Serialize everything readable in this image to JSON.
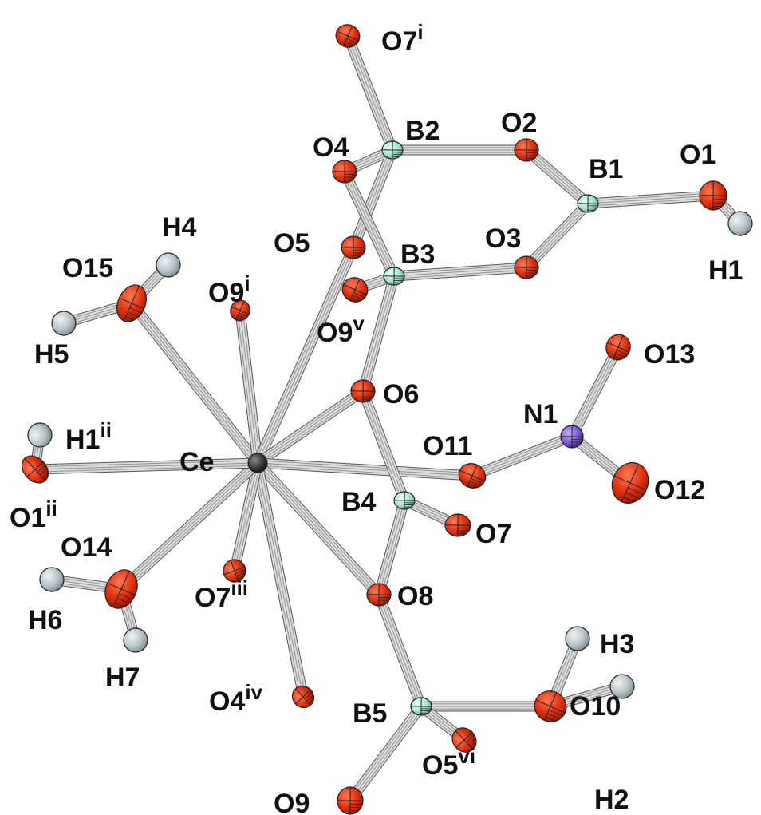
{
  "structure": {
    "atoms": [
      {
        "id": "Ce",
        "element": "Ce",
        "label": "Ce",
        "sup": ""
      },
      {
        "id": "B1",
        "element": "B",
        "label": "B1",
        "sup": ""
      },
      {
        "id": "B2",
        "element": "B",
        "label": "B2",
        "sup": ""
      },
      {
        "id": "B3",
        "element": "B",
        "label": "B3",
        "sup": ""
      },
      {
        "id": "B4",
        "element": "B",
        "label": "B4",
        "sup": ""
      },
      {
        "id": "B5",
        "element": "B",
        "label": "B5",
        "sup": ""
      },
      {
        "id": "N1",
        "element": "N",
        "label": "N1",
        "sup": ""
      },
      {
        "id": "O1",
        "element": "O",
        "label": "O1",
        "sup": ""
      },
      {
        "id": "O2",
        "element": "O",
        "label": "O2",
        "sup": ""
      },
      {
        "id": "O3",
        "element": "O",
        "label": "O3",
        "sup": ""
      },
      {
        "id": "O4",
        "element": "O",
        "label": "O4",
        "sup": ""
      },
      {
        "id": "O5",
        "element": "O",
        "label": "O5",
        "sup": ""
      },
      {
        "id": "O6",
        "element": "O",
        "label": "O6",
        "sup": ""
      },
      {
        "id": "O7",
        "element": "O",
        "label": "O7",
        "sup": ""
      },
      {
        "id": "O8",
        "element": "O",
        "label": "O8",
        "sup": ""
      },
      {
        "id": "O9",
        "element": "O",
        "label": "O9",
        "sup": ""
      },
      {
        "id": "O10",
        "element": "O",
        "label": "O10",
        "sup": ""
      },
      {
        "id": "O11",
        "element": "O",
        "label": "O11",
        "sup": ""
      },
      {
        "id": "O12",
        "element": "O",
        "label": "O12",
        "sup": ""
      },
      {
        "id": "O13",
        "element": "O",
        "label": "O13",
        "sup": ""
      },
      {
        "id": "O14",
        "element": "O",
        "label": "O14",
        "sup": ""
      },
      {
        "id": "O15",
        "element": "O",
        "label": "O15",
        "sup": ""
      },
      {
        "id": "O7i",
        "element": "O",
        "label": "O7",
        "sup": "i"
      },
      {
        "id": "O9i",
        "element": "O",
        "label": "O9",
        "sup": "i"
      },
      {
        "id": "O9v",
        "element": "O",
        "label": "O9",
        "sup": "v"
      },
      {
        "id": "O1ii",
        "element": "O",
        "label": "O1",
        "sup": "ii"
      },
      {
        "id": "O7iii",
        "element": "O",
        "label": "O7",
        "sup": "iii"
      },
      {
        "id": "O4iv",
        "element": "O",
        "label": "O4",
        "sup": "iv"
      },
      {
        "id": "O5vi",
        "element": "O",
        "label": "O5",
        "sup": "vi"
      },
      {
        "id": "H1",
        "element": "H",
        "label": "H1",
        "sup": ""
      },
      {
        "id": "H2",
        "element": "H",
        "label": "H2",
        "sup": ""
      },
      {
        "id": "H3",
        "element": "H",
        "label": "H3",
        "sup": ""
      },
      {
        "id": "H4",
        "element": "H",
        "label": "H4",
        "sup": ""
      },
      {
        "id": "H5",
        "element": "H",
        "label": "H5",
        "sup": ""
      },
      {
        "id": "H6",
        "element": "H",
        "label": "H6",
        "sup": ""
      },
      {
        "id": "H7",
        "element": "H",
        "label": "H7",
        "sup": ""
      },
      {
        "id": "H1ii",
        "element": "H",
        "label": "H1",
        "sup": "ii"
      }
    ],
    "bonds": [
      [
        "Ce",
        "O15"
      ],
      [
        "Ce",
        "O9i"
      ],
      [
        "Ce",
        "O5"
      ],
      [
        "Ce",
        "O6"
      ],
      [
        "Ce",
        "O11"
      ],
      [
        "Ce",
        "O8"
      ],
      [
        "Ce",
        "O4iv"
      ],
      [
        "Ce",
        "O7iii"
      ],
      [
        "Ce",
        "O14"
      ],
      [
        "Ce",
        "O1ii"
      ],
      [
        "O15",
        "H4"
      ],
      [
        "O15",
        "H5"
      ],
      [
        "O14",
        "H6"
      ],
      [
        "O14",
        "H7"
      ],
      [
        "O1ii",
        "H1ii"
      ],
      [
        "O7i",
        "B2"
      ],
      [
        "B2",
        "O4"
      ],
      [
        "B2",
        "O5"
      ],
      [
        "B2",
        "O2"
      ],
      [
        "O2",
        "B1"
      ],
      [
        "B1",
        "O1"
      ],
      [
        "O1",
        "H1"
      ],
      [
        "B1",
        "O3"
      ],
      [
        "O3",
        "B3"
      ],
      [
        "B3",
        "O9v"
      ],
      [
        "B3",
        "O4"
      ],
      [
        "B3",
        "O6"
      ],
      [
        "O6",
        "B4"
      ],
      [
        "B4",
        "O7"
      ],
      [
        "B4",
        "O8"
      ],
      [
        "O8",
        "B5"
      ],
      [
        "B5",
        "O10"
      ],
      [
        "O10",
        "H3"
      ],
      [
        "O10",
        "H2"
      ],
      [
        "B5",
        "O5vi"
      ],
      [
        "B5",
        "O9"
      ],
      [
        "O11",
        "N1"
      ],
      [
        "N1",
        "O12"
      ],
      [
        "N1",
        "O13"
      ]
    ]
  },
  "colors": {
    "Ce": "#3a3a3a",
    "B": "#a8e6cf",
    "N": "#7b5bd9",
    "O": "#e03010",
    "H": "#b8c4c8",
    "bond": "#aaaaaa",
    "bond_outline": "#555555",
    "label": "#111111"
  }
}
